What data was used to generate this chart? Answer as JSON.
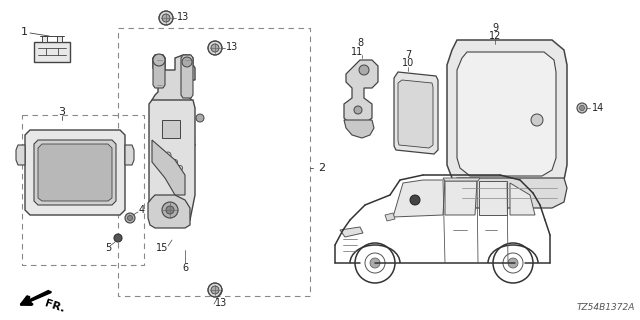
{
  "bg_color": "#ffffff",
  "diagram_id": "TZ54B1372A",
  "line_color": "#444444",
  "label_color": "#222222",
  "dash_color": "#888888"
}
